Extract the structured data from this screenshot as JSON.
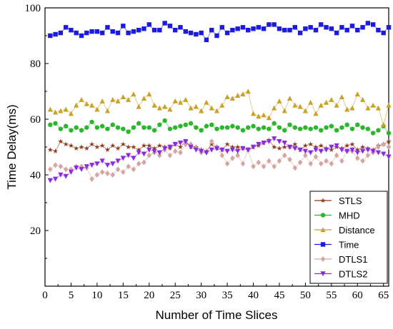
{
  "chart_data": {
    "type": "line",
    "xlabel": "Number of Time Slices",
    "ylabel": "Time Delay(ms)",
    "xlim": [
      0,
      66
    ],
    "ylim": [
      0,
      100
    ],
    "xticks": [
      0,
      5,
      10,
      15,
      20,
      25,
      30,
      35,
      40,
      45,
      50,
      55,
      60,
      65
    ],
    "yticks": [
      20,
      40,
      60,
      80,
      100
    ],
    "grid": false,
    "legend_position": "bottom-right",
    "series": [
      {
        "name": "STLS",
        "color": "#8B3A1A",
        "marker": "star",
        "x": [
          1,
          2,
          3,
          4,
          5,
          6,
          7,
          8,
          9,
          10,
          11,
          12,
          13,
          14,
          15,
          16,
          17,
          18,
          19,
          20,
          21,
          22,
          23,
          24,
          25,
          26,
          27,
          28,
          29,
          30,
          31,
          32,
          33,
          34,
          35,
          36,
          37,
          38,
          39,
          40,
          41,
          42,
          43,
          44,
          45,
          46,
          47,
          48,
          49,
          50,
          51,
          52,
          53,
          54,
          55,
          56,
          57,
          58,
          59,
          60,
          61,
          62,
          63,
          64,
          65,
          66
        ],
        "y": [
          49,
          48.5,
          52,
          51,
          50.5,
          49.5,
          50,
          49.5,
          51,
          50,
          50.5,
          49,
          50.5,
          49.5,
          51,
          50,
          50,
          49,
          50.5,
          50.5,
          49.5,
          50.5,
          50,
          49.5,
          51,
          50,
          52,
          50,
          50,
          49,
          48.5,
          51,
          49.5,
          49,
          51,
          50,
          50,
          49.5,
          49,
          50,
          50.5,
          51.5,
          52.5,
          50,
          49.5,
          50,
          50,
          51,
          49,
          50.5,
          51,
          50,
          50.5,
          49.5,
          49,
          50,
          49.5,
          50.5,
          51,
          49,
          50,
          49.5,
          49,
          50.5,
          51,
          52
        ]
      },
      {
        "name": "MHD",
        "color": "#2DB52D",
        "marker": "circle",
        "x": [
          1,
          2,
          3,
          4,
          5,
          6,
          7,
          8,
          9,
          10,
          11,
          12,
          13,
          14,
          15,
          16,
          17,
          18,
          19,
          20,
          21,
          22,
          23,
          24,
          25,
          26,
          27,
          28,
          29,
          30,
          31,
          32,
          33,
          34,
          35,
          36,
          37,
          38,
          39,
          40,
          41,
          42,
          43,
          44,
          45,
          46,
          47,
          48,
          49,
          50,
          51,
          52,
          53,
          54,
          55,
          56,
          57,
          58,
          59,
          60,
          61,
          62,
          63,
          64,
          65,
          66
        ],
        "y": [
          58,
          58.5,
          56.5,
          57.5,
          56,
          57,
          56,
          57,
          59,
          57,
          57.5,
          56.5,
          58,
          57,
          56.5,
          55.5,
          57,
          58.5,
          57,
          57,
          56,
          58,
          59.5,
          56.5,
          57,
          57.5,
          58,
          58.5,
          57,
          56,
          57.5,
          58,
          56.5,
          57,
          57,
          57.5,
          57,
          56,
          57,
          57.5,
          56.5,
          57,
          56.5,
          58.5,
          57,
          56,
          58,
          57,
          56.5,
          57,
          56.5,
          57,
          56,
          57,
          57.5,
          56,
          57,
          58,
          56.5,
          58,
          57,
          56.5,
          55,
          56,
          57.5,
          55
        ]
      },
      {
        "name": "Distance",
        "color": "#C9A227",
        "marker": "triangle-up",
        "x": [
          1,
          2,
          3,
          4,
          5,
          6,
          7,
          8,
          9,
          10,
          11,
          12,
          13,
          14,
          15,
          16,
          17,
          18,
          19,
          20,
          21,
          22,
          23,
          24,
          25,
          26,
          27,
          28,
          29,
          30,
          31,
          32,
          33,
          34,
          35,
          36,
          37,
          38,
          39,
          40,
          41,
          42,
          43,
          44,
          45,
          46,
          47,
          48,
          49,
          50,
          51,
          52,
          53,
          54,
          55,
          56,
          57,
          58,
          59,
          60,
          61,
          62,
          63,
          64,
          65,
          66
        ],
        "y": [
          63.5,
          62.5,
          63,
          63.5,
          62,
          65,
          67,
          65.5,
          65,
          63.5,
          66.5,
          63,
          67,
          66.5,
          68,
          67,
          69,
          64.5,
          67.5,
          69,
          65,
          64,
          64.5,
          63.5,
          66.5,
          66,
          67,
          64,
          64.5,
          63,
          66,
          64,
          63,
          65,
          68,
          67.5,
          68.5,
          69,
          70,
          62,
          61,
          61.5,
          60.5,
          64,
          66.5,
          63,
          67.5,
          65,
          64.5,
          63,
          66,
          62,
          65,
          66,
          67,
          65,
          68,
          63.5,
          64,
          69,
          67,
          64,
          65,
          64,
          58,
          65
        ]
      },
      {
        "name": "Time",
        "color": "#1A1AE0",
        "marker": "square",
        "x": [
          1,
          2,
          3,
          4,
          5,
          6,
          7,
          8,
          9,
          10,
          11,
          12,
          13,
          14,
          15,
          16,
          17,
          18,
          19,
          20,
          21,
          22,
          23,
          24,
          25,
          26,
          27,
          28,
          29,
          30,
          31,
          32,
          33,
          34,
          35,
          36,
          37,
          38,
          39,
          40,
          41,
          42,
          43,
          44,
          45,
          46,
          47,
          48,
          49,
          50,
          51,
          52,
          53,
          54,
          55,
          56,
          57,
          58,
          59,
          60,
          61,
          62,
          63,
          64,
          65,
          66
        ],
        "y": [
          90,
          90.5,
          91,
          93,
          92,
          91,
          90,
          91,
          91.5,
          91.5,
          91,
          93,
          91.5,
          91,
          93.5,
          91,
          91.5,
          92,
          92.5,
          94,
          92,
          92,
          94.5,
          93.5,
          92,
          93,
          91.5,
          91,
          90.5,
          91,
          88.5,
          92,
          90,
          93,
          91,
          92,
          92.5,
          93,
          92,
          92.5,
          93,
          92.5,
          94,
          94,
          92.5,
          92,
          92,
          93,
          91,
          92.5,
          93,
          92,
          94,
          93,
          92.5,
          91,
          93,
          92,
          93.5,
          92,
          93,
          94.5,
          94,
          92,
          91,
          93
        ]
      },
      {
        "name": "DTLS1",
        "color": "#D4A5A0",
        "marker": "diamond",
        "x": [
          1,
          2,
          3,
          4,
          5,
          6,
          7,
          8,
          9,
          10,
          11,
          12,
          13,
          14,
          15,
          16,
          17,
          18,
          19,
          20,
          21,
          22,
          23,
          24,
          25,
          26,
          27,
          28,
          29,
          30,
          31,
          32,
          33,
          34,
          35,
          36,
          37,
          38,
          39,
          40,
          41,
          42,
          43,
          44,
          45,
          46,
          47,
          48,
          49,
          50,
          51,
          52,
          53,
          54,
          55,
          56,
          57,
          58,
          59,
          60,
          61,
          62,
          63,
          64,
          65,
          66
        ],
        "y": [
          42,
          43.5,
          43,
          42,
          42,
          43,
          43,
          42.5,
          38.5,
          40,
          41,
          40.5,
          40,
          42,
          41,
          43,
          42,
          44,
          44.5,
          47,
          48,
          47,
          49,
          47,
          48.5,
          48,
          51,
          51,
          49.5,
          48,
          48,
          52,
          50,
          47,
          44,
          46,
          47,
          44,
          49,
          43,
          44.5,
          43,
          45,
          43,
          45,
          47,
          45.5,
          42.5,
          44.5,
          47,
          44,
          46.5,
          44,
          45,
          44,
          47,
          45,
          48.5,
          48.5,
          46,
          45,
          47,
          48,
          50,
          51,
          50
        ]
      },
      {
        "name": "DTLS2",
        "color": "#8A2BE2",
        "marker": "triangle-down",
        "x": [
          1,
          2,
          3,
          4,
          5,
          6,
          7,
          8,
          9,
          10,
          11,
          12,
          13,
          14,
          15,
          16,
          17,
          18,
          19,
          20,
          21,
          22,
          23,
          24,
          25,
          26,
          27,
          28,
          29,
          30,
          31,
          32,
          33,
          34,
          35,
          36,
          37,
          38,
          39,
          40,
          41,
          42,
          43,
          44,
          45,
          46,
          47,
          48,
          49,
          50,
          51,
          52,
          53,
          54,
          55,
          56,
          57,
          58,
          59,
          60,
          61,
          62,
          63,
          64,
          65,
          66
        ],
        "y": [
          38,
          38.5,
          40,
          39.5,
          41,
          42.5,
          42,
          43,
          43.5,
          44,
          45,
          43.5,
          44,
          45,
          46,
          47,
          46,
          48,
          47.5,
          49,
          48.5,
          48,
          49.5,
          50,
          51,
          51.5,
          52,
          50,
          49,
          48.5,
          48,
          49,
          49.5,
          49,
          48.5,
          49,
          48.5,
          49.5,
          49,
          50,
          51,
          51.5,
          52,
          53,
          52,
          51.5,
          50,
          49.5,
          49,
          48.5,
          48,
          49,
          48.5,
          49,
          50,
          50.5,
          49,
          48.5,
          49,
          48,
          48.5,
          49,
          48.5,
          48,
          47.5,
          46.5
        ]
      }
    ]
  }
}
